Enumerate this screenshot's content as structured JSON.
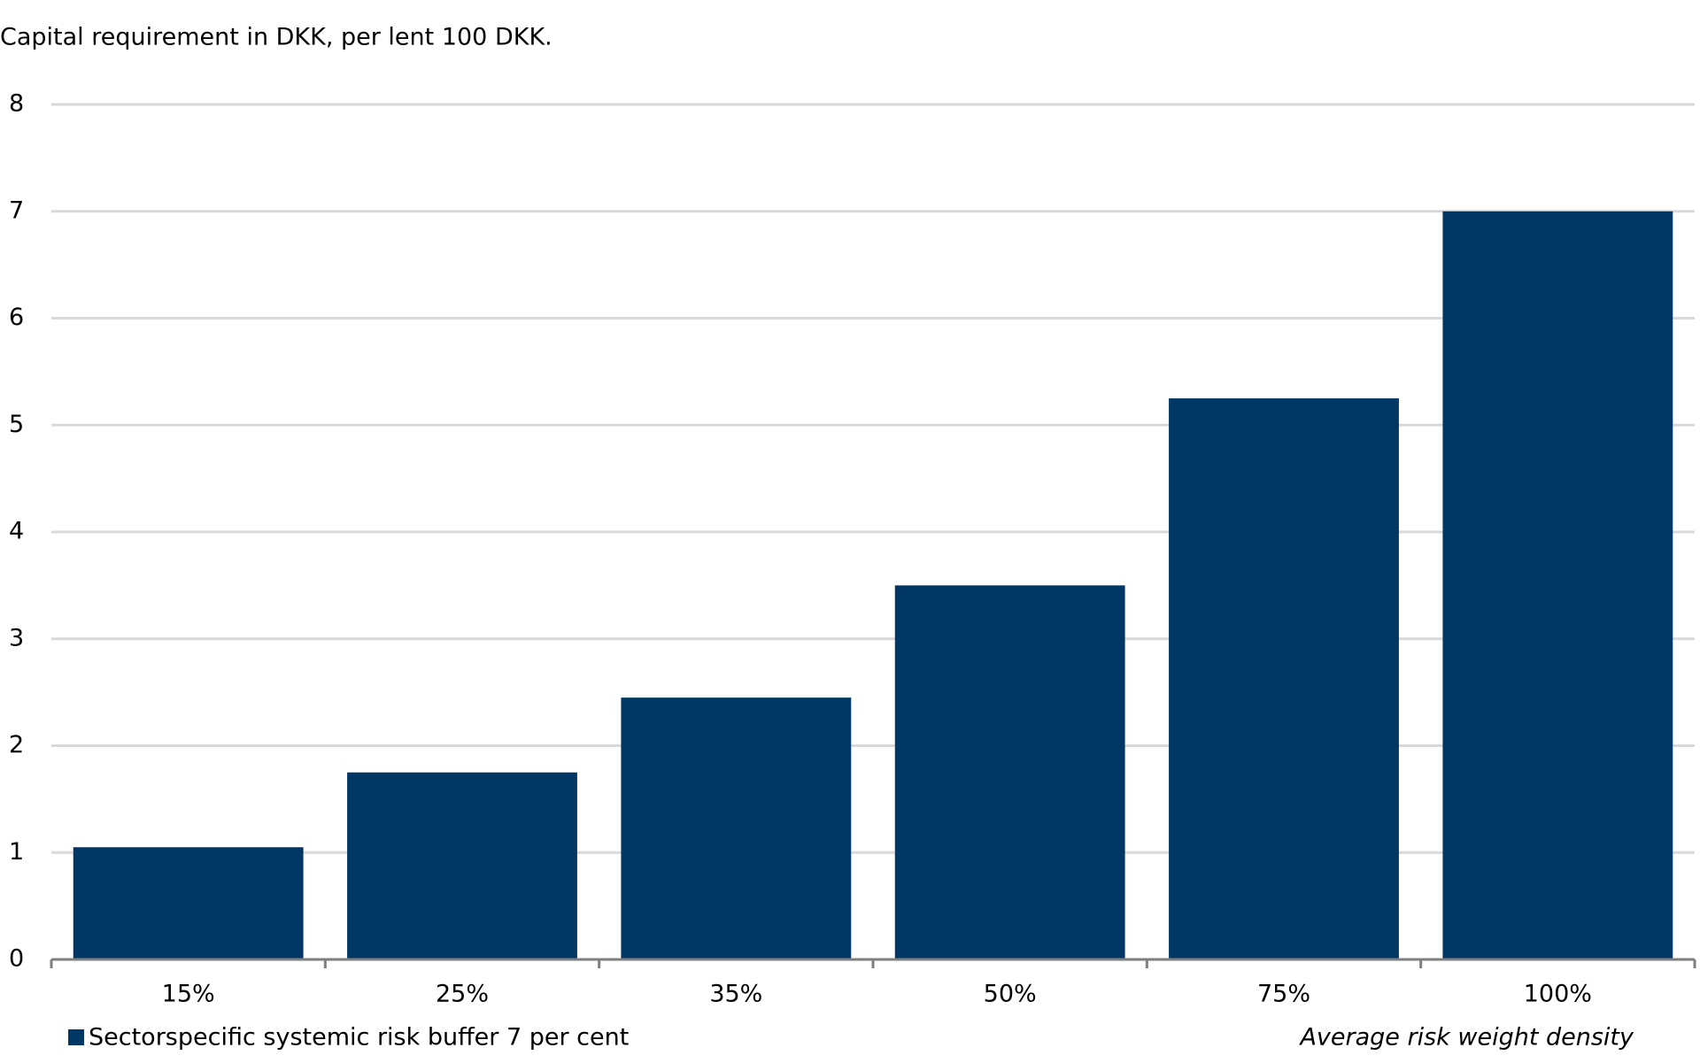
{
  "chart_data": {
    "type": "bar",
    "title": "Capital requirement in DKK, per lent 100 DKK.",
    "x_label": "Average risk weight density",
    "categories": [
      "15%",
      "25%",
      "35%",
      "50%",
      "75%",
      "100%"
    ],
    "series": [
      {
        "name": "Sectorspecific systemic risk buffer 7 per cent",
        "color": "#003764",
        "values": [
          1.05,
          1.75,
          2.45,
          3.5,
          5.25,
          7
        ]
      }
    ],
    "ylim": [
      0,
      8
    ],
    "yticks": [
      0,
      1,
      2,
      3,
      4,
      5,
      6,
      7,
      8
    ],
    "grid": true
  }
}
